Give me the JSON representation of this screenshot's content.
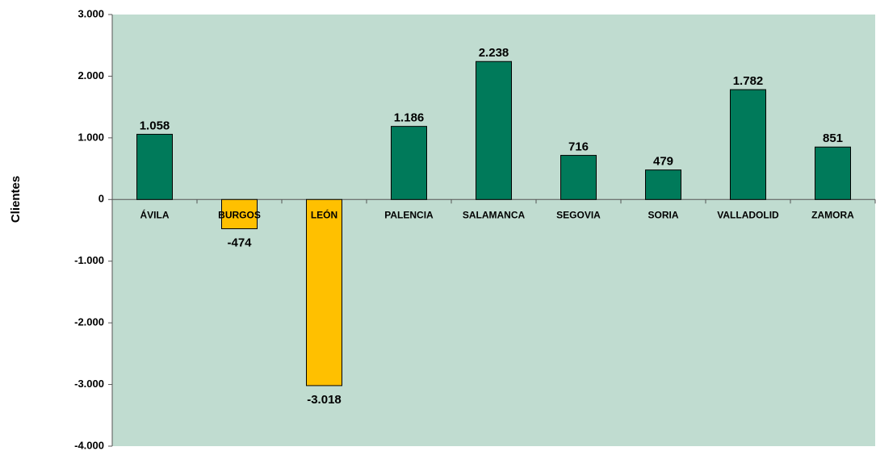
{
  "chart_data": {
    "type": "bar",
    "y_label": "Clientes",
    "categories": [
      "ÁVILA",
      "BURGOS",
      "LEÓN",
      "PALENCIA",
      "SALAMANCA",
      "SEGOVIA",
      "SORIA",
      "VALLADOLID",
      "ZAMORA"
    ],
    "values": [
      1058,
      -474,
      -3018,
      1186,
      2238,
      716,
      479,
      1782,
      851
    ],
    "value_labels": [
      "1.058",
      "-474",
      "-3.018",
      "1.186",
      "2.238",
      "716",
      "479",
      "1.782",
      "851"
    ],
    "colors": [
      "#007a5a",
      "#ffc000",
      "#ffc000",
      "#007a5a",
      "#007a5a",
      "#007a5a",
      "#007a5a",
      "#007a5a",
      "#007a5a"
    ],
    "background": "#c0dcd0",
    "ylim": [
      -4000,
      3000
    ],
    "yticks": [
      {
        "value": -4000,
        "label": "-4.000"
      },
      {
        "value": -3000,
        "label": "-3.000"
      },
      {
        "value": -2000,
        "label": "-2.000"
      },
      {
        "value": -1000,
        "label": "-1.000"
      },
      0,
      {
        "value": 1000,
        "label": "1.000"
      },
      {
        "value": 2000,
        "label": "2.000"
      },
      {
        "value": 3000,
        "label": "3.000"
      }
    ]
  }
}
